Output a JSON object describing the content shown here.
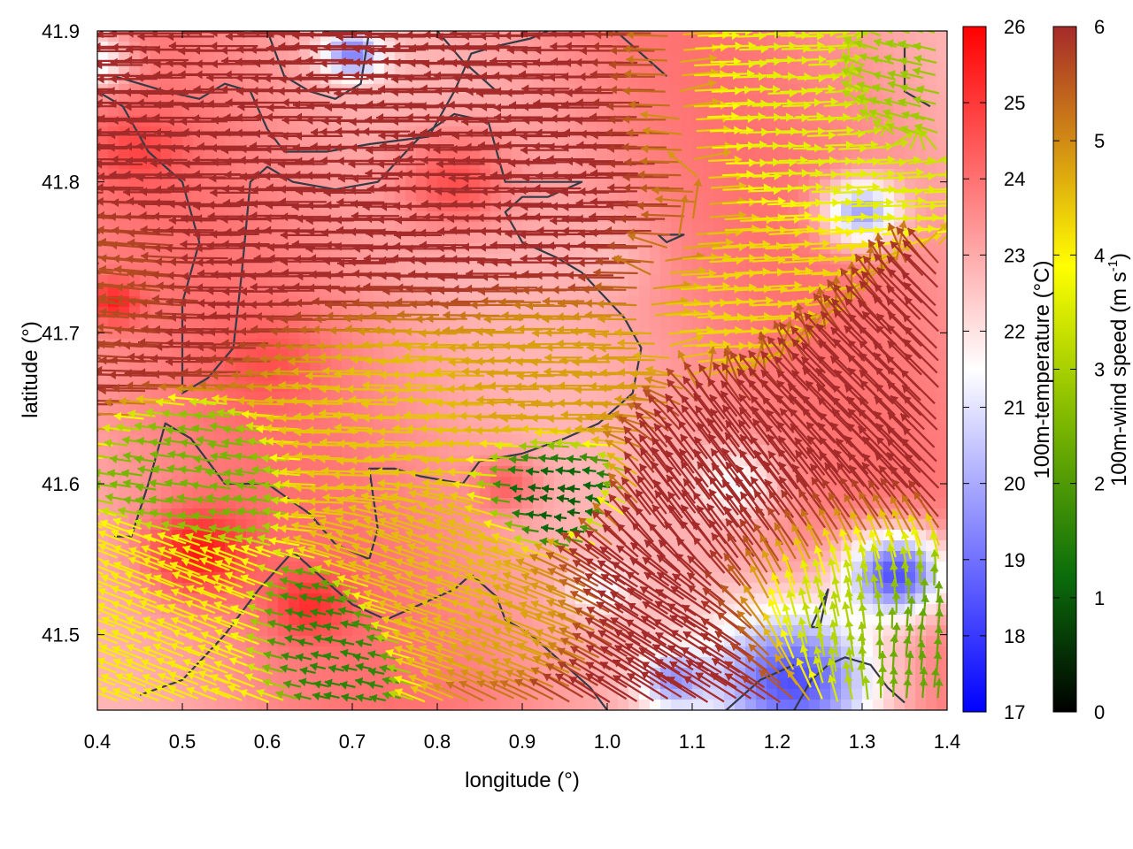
{
  "chart_data": {
    "type": "heatmap",
    "title": "",
    "xlabel": "longitude (°)",
    "ylabel": "latitude (°)",
    "xlim": [
      0.4,
      1.4
    ],
    "ylim": [
      41.45,
      41.9
    ],
    "x_ticks": [
      {
        "value": 0.4,
        "label": "0.4"
      },
      {
        "value": 0.5,
        "label": "0.5"
      },
      {
        "value": 0.6,
        "label": "0.6"
      },
      {
        "value": 0.7,
        "label": "0.7"
      },
      {
        "value": 0.8,
        "label": "0.8"
      },
      {
        "value": 0.9,
        "label": "0.9"
      },
      {
        "value": 1.0,
        "label": "1.0"
      },
      {
        "value": 1.1,
        "label": "1.1"
      },
      {
        "value": 1.2,
        "label": "1.2"
      },
      {
        "value": 1.3,
        "label": "1.3"
      },
      {
        "value": 1.4,
        "label": "1.4"
      }
    ],
    "y_ticks": [
      {
        "value": 41.5,
        "label": "41.5"
      },
      {
        "value": 41.6,
        "label": "41.6"
      },
      {
        "value": 41.7,
        "label": "41.7"
      },
      {
        "value": 41.8,
        "label": "41.8"
      },
      {
        "value": 41.9,
        "label": "41.9"
      }
    ],
    "temperature_colorbar": {
      "label": "100m-temperature (°C)",
      "range": [
        17,
        26
      ],
      "ticks": [
        {
          "value": 17,
          "label": "17"
        },
        {
          "value": 18,
          "label": "18"
        },
        {
          "value": 19,
          "label": "19"
        },
        {
          "value": 20,
          "label": "20"
        },
        {
          "value": 21,
          "label": "21"
        },
        {
          "value": 22,
          "label": "22"
        },
        {
          "value": 23,
          "label": "23"
        },
        {
          "value": 24,
          "label": "24"
        },
        {
          "value": 25,
          "label": "25"
        },
        {
          "value": 26,
          "label": "26"
        }
      ],
      "colors": [
        "#0000ff",
        "#ffffff",
        "#ff0000"
      ]
    },
    "wind_colorbar": {
      "label_main": "100m-wind speed (m s",
      "label_sup": "-1",
      "label_end": ")",
      "range": [
        0,
        6
      ],
      "ticks": [
        {
          "value": 0,
          "label": "0"
        },
        {
          "value": 1,
          "label": "1"
        },
        {
          "value": 2,
          "label": "2"
        },
        {
          "value": 3,
          "label": "3"
        },
        {
          "value": 4,
          "label": "4"
        },
        {
          "value": 5,
          "label": "5"
        },
        {
          "value": 6,
          "label": "6"
        }
      ],
      "colors": [
        "#000000",
        "#0b6e0b",
        "#8bc000",
        "#ffff00",
        "#d28c14",
        "#a52a2a"
      ]
    },
    "temperature_blobs": [
      {
        "lon": 0.52,
        "lat": 41.555,
        "temp": 25.6,
        "r": 0.06
      },
      {
        "lon": 0.65,
        "lat": 41.52,
        "temp": 25.2,
        "r": 0.045
      },
      {
        "lon": 0.82,
        "lat": 41.8,
        "temp": 24.6,
        "r": 0.07
      },
      {
        "lon": 0.45,
        "lat": 41.82,
        "temp": 24.8,
        "r": 0.05
      },
      {
        "lon": 0.42,
        "lat": 41.72,
        "temp": 25.5,
        "r": 0.03
      },
      {
        "lon": 0.6,
        "lat": 41.68,
        "temp": 24.6,
        "r": 0.06
      },
      {
        "lon": 0.88,
        "lat": 41.6,
        "temp": 24.3,
        "r": 0.04
      },
      {
        "lon": 0.39,
        "lat": 41.88,
        "temp": 21.0,
        "r": 0.045
      },
      {
        "lon": 0.7,
        "lat": 41.885,
        "temp": 19.2,
        "r": 0.035
      },
      {
        "lon": 1.3,
        "lat": 41.78,
        "temp": 19.8,
        "r": 0.045
      },
      {
        "lon": 1.22,
        "lat": 41.47,
        "temp": 18.4,
        "r": 0.1
      },
      {
        "lon": 1.34,
        "lat": 41.54,
        "temp": 18.4,
        "r": 0.06
      },
      {
        "lon": 1.08,
        "lat": 41.47,
        "temp": 19.5,
        "r": 0.04
      },
      {
        "lon": 0.99,
        "lat": 41.53,
        "temp": 21.2,
        "r": 0.035
      },
      {
        "lon": 1.15,
        "lat": 41.6,
        "temp": 21.3,
        "r": 0.05
      },
      {
        "lon": 1.0,
        "lat": 41.75,
        "temp": 22.7,
        "r": 0.05
      }
    ],
    "wind_regions": [
      {
        "lon": 0.63,
        "lat": 41.79,
        "u": -1.0,
        "v": 0.0,
        "speed": 6.0,
        "r": 0.17
      },
      {
        "lon": 0.93,
        "lat": 41.81,
        "u": -1.0,
        "v": 0.0,
        "speed": 6.0,
        "r": 0.13
      },
      {
        "lon": 0.45,
        "lat": 41.74,
        "u": -0.95,
        "v": 0.1,
        "speed": 5.5,
        "r": 0.07
      },
      {
        "lon": 1.22,
        "lat": 41.84,
        "u": 1.0,
        "v": 0.03,
        "speed": 3.3,
        "r": 0.1
      },
      {
        "lon": 1.33,
        "lat": 41.86,
        "u": -0.9,
        "v": 0.2,
        "speed": 2.5,
        "r": 0.06
      },
      {
        "lon": 1.17,
        "lat": 41.73,
        "u": 1.0,
        "v": 0.05,
        "speed": 4.0,
        "r": 0.08
      },
      {
        "lon": 0.75,
        "lat": 41.65,
        "u": -1.0,
        "v": 0.02,
        "speed": 4.2,
        "r": 0.1
      },
      {
        "lon": 0.95,
        "lat": 41.67,
        "u": -1.0,
        "v": 0.0,
        "speed": 4.6,
        "r": 0.08
      },
      {
        "lon": 0.55,
        "lat": 41.61,
        "u": -0.95,
        "v": 0.15,
        "speed": 2.2,
        "r": 0.06
      },
      {
        "lon": 0.5,
        "lat": 41.5,
        "u": -0.9,
        "v": 0.35,
        "speed": 3.8,
        "r": 0.08
      },
      {
        "lon": 0.67,
        "lat": 41.5,
        "u": -0.9,
        "v": 0.2,
        "speed": 1.5,
        "r": 0.05
      },
      {
        "lon": 0.8,
        "lat": 41.55,
        "u": -0.9,
        "v": 0.3,
        "speed": 4.3,
        "r": 0.07
      },
      {
        "lon": 0.95,
        "lat": 41.6,
        "u": -0.9,
        "v": 0.1,
        "speed": 1.0,
        "r": 0.05
      },
      {
        "lon": 0.95,
        "lat": 41.5,
        "u": -0.9,
        "v": 0.35,
        "speed": 4.5,
        "r": 0.05
      },
      {
        "lon": 1.08,
        "lat": 41.49,
        "u": -0.8,
        "v": 0.5,
        "speed": 6.0,
        "r": 0.09
      },
      {
        "lon": 1.18,
        "lat": 41.58,
        "u": -0.6,
        "v": 0.8,
        "speed": 6.0,
        "r": 0.1
      },
      {
        "lon": 1.31,
        "lat": 41.66,
        "u": -0.7,
        "v": 0.7,
        "speed": 6.0,
        "r": 0.09
      },
      {
        "lon": 1.27,
        "lat": 41.52,
        "u": -0.2,
        "v": 1.0,
        "speed": 2.8,
        "r": 0.07
      },
      {
        "lon": 1.36,
        "lat": 41.5,
        "u": 0.1,
        "v": 1.0,
        "speed": 2.0,
        "r": 0.05
      }
    ],
    "contours": [
      [
        [
          0.42,
          41.87
        ],
        [
          0.45,
          41.865
        ],
        [
          0.48,
          41.86
        ],
        [
          0.52,
          41.855
        ],
        [
          0.55,
          41.865
        ],
        [
          0.58,
          41.86
        ],
        [
          0.6,
          41.835
        ],
        [
          0.62,
          41.82
        ],
        [
          0.67,
          41.82
        ],
        [
          0.72,
          41.825
        ],
        [
          0.79,
          41.83
        ],
        [
          0.82,
          41.86
        ],
        [
          0.84,
          41.885
        ],
        [
          0.87,
          41.89
        ],
        [
          0.91,
          41.895
        ],
        [
          0.93,
          41.9
        ]
      ],
      [
        [
          0.4,
          41.86
        ],
        [
          0.43,
          41.85
        ],
        [
          0.46,
          41.82
        ],
        [
          0.5,
          41.8
        ],
        [
          0.52,
          41.76
        ],
        [
          0.5,
          41.72
        ],
        [
          0.5,
          41.66
        ],
        [
          0.53,
          41.67
        ],
        [
          0.56,
          41.69
        ],
        [
          0.57,
          41.74
        ],
        [
          0.58,
          41.8
        ],
        [
          0.6,
          41.81
        ],
        [
          0.63,
          41.8
        ],
        [
          0.68,
          41.795
        ],
        [
          0.73,
          41.8
        ],
        [
          0.78,
          41.83
        ],
        [
          0.82,
          41.845
        ],
        [
          0.86,
          41.84
        ],
        [
          0.88,
          41.8
        ],
        [
          0.92,
          41.8
        ],
        [
          0.97,
          41.8
        ],
        [
          0.93,
          41.79
        ],
        [
          0.9,
          41.79
        ],
        [
          0.88,
          41.78
        ],
        [
          0.9,
          41.76
        ],
        [
          0.94,
          41.75
        ],
        [
          0.97,
          41.74
        ],
        [
          1.02,
          41.71
        ],
        [
          1.04,
          41.69
        ],
        [
          1.03,
          41.66
        ],
        [
          0.99,
          41.64
        ],
        [
          0.95,
          41.63
        ],
        [
          0.9,
          41.62
        ],
        [
          0.85,
          41.615
        ],
        [
          0.83,
          41.6
        ],
        [
          0.78,
          41.605
        ],
        [
          0.75,
          41.61
        ],
        [
          0.72,
          41.61
        ],
        [
          0.73,
          41.57
        ],
        [
          0.72,
          41.55
        ],
        [
          0.68,
          41.56
        ],
        [
          0.65,
          41.58
        ],
        [
          0.6,
          41.6
        ],
        [
          0.55,
          41.6
        ],
        [
          0.51,
          41.63
        ],
        [
          0.48,
          41.64
        ],
        [
          0.46,
          41.6
        ],
        [
          0.44,
          41.565
        ],
        [
          0.42,
          41.565
        ]
      ],
      [
        [
          0.6,
          41.9
        ],
        [
          0.62,
          41.87
        ],
        [
          0.65,
          41.86
        ],
        [
          0.68,
          41.855
        ],
        [
          0.71,
          41.865
        ],
        [
          0.72,
          41.9
        ]
      ],
      [
        [
          0.45,
          41.46
        ],
        [
          0.5,
          41.47
        ],
        [
          0.55,
          41.5
        ],
        [
          0.59,
          41.53
        ],
        [
          0.63,
          41.555
        ],
        [
          0.66,
          41.54
        ],
        [
          0.7,
          41.52
        ],
        [
          0.74,
          41.51
        ],
        [
          0.78,
          41.52
        ],
        [
          0.82,
          41.53
        ],
        [
          0.84,
          41.54
        ],
        [
          0.87,
          41.525
        ],
        [
          0.88,
          41.51
        ],
        [
          0.91,
          41.5
        ],
        [
          0.93,
          41.49
        ],
        [
          0.95,
          41.48
        ],
        [
          0.98,
          41.465
        ],
        [
          1.0,
          41.45
        ]
      ],
      [
        [
          1.35,
          41.89
        ],
        [
          1.35,
          41.86
        ],
        [
          1.38,
          41.85
        ]
      ],
      [
        [
          1.22,
          41.45
        ],
        [
          1.24,
          41.47
        ],
        [
          1.26,
          41.48
        ],
        [
          1.28,
          41.485
        ],
        [
          1.31,
          41.48
        ],
        [
          1.33,
          41.465
        ],
        [
          1.35,
          41.455
        ]
      ],
      [
        [
          1.24,
          41.505
        ],
        [
          1.26,
          41.53
        ],
        [
          1.25,
          41.505
        ],
        [
          1.24,
          41.505
        ]
      ],
      [
        [
          1.14,
          41.45
        ],
        [
          1.18,
          41.47
        ],
        [
          1.22,
          41.48
        ]
      ],
      [
        [
          1.06,
          41.765
        ],
        [
          1.09,
          41.765
        ],
        [
          1.07,
          41.76
        ],
        [
          1.06,
          41.765
        ]
      ],
      [
        [
          1.01,
          41.9
        ],
        [
          1.05,
          41.88
        ],
        [
          1.07,
          41.87
        ]
      ],
      [
        [
          0.8,
          41.9
        ],
        [
          0.83,
          41.88
        ],
        [
          0.85,
          41.87
        ],
        [
          0.87,
          41.86
        ]
      ]
    ]
  }
}
